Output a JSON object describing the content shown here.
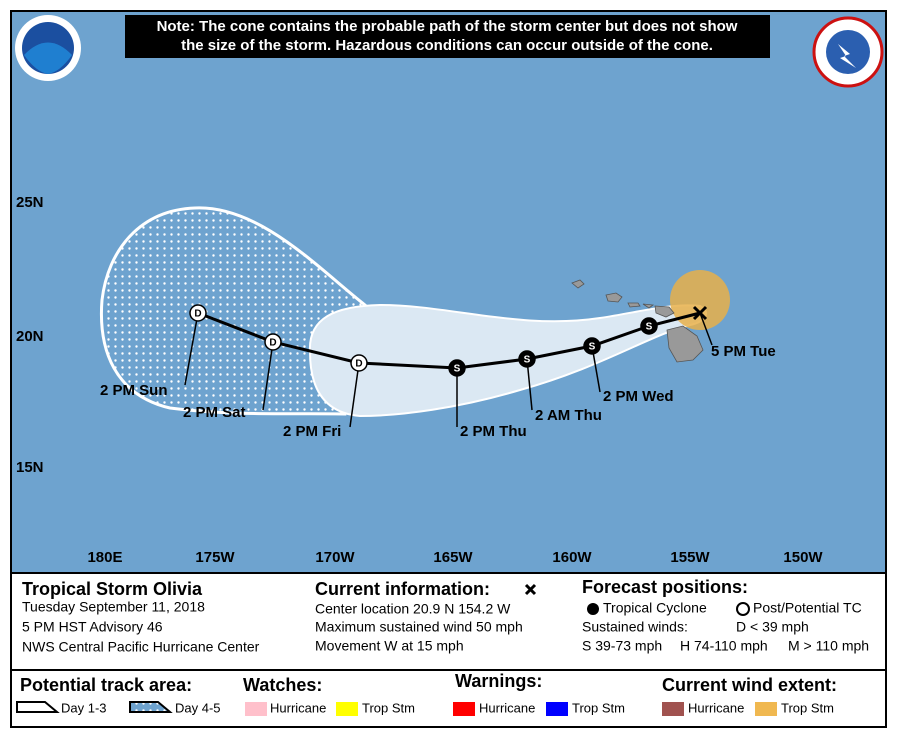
{
  "note": "Note: The cone contains the probable path of the storm center but does not show|the size of the storm. Hazardous conditions can occur outside of the cone.",
  "map": {
    "lat_labels": [
      "25N",
      "20N",
      "15N"
    ],
    "lon_labels": [
      "180E",
      "175W",
      "170W",
      "165W",
      "160W",
      "155W",
      "150W"
    ]
  },
  "track": {
    "points": [
      {
        "symbol": "D",
        "time": "2 PM Sun"
      },
      {
        "symbol": "D",
        "time": "2 PM Sat"
      },
      {
        "symbol": "D",
        "time": "2 PM Fri"
      },
      {
        "symbol": "S",
        "time": "2 PM Thu"
      },
      {
        "symbol": "S",
        "time": "2 AM Thu"
      },
      {
        "symbol": "S",
        "time": "2 PM Wed"
      },
      {
        "symbol": "S",
        "time": null
      }
    ],
    "current": {
      "time": "5 PM Tue"
    }
  },
  "storm": {
    "name": "Tropical Storm Olivia",
    "date": "Tuesday September 11, 2018",
    "advisory": "5 PM HST Advisory 46",
    "center": "NWS Central Pacific Hurricane Center"
  },
  "current_info": {
    "title": "Current information:",
    "lines": [
      "Center location 20.9 N 154.2 W",
      "Maximum sustained wind 50 mph",
      "Movement W at 15 mph"
    ]
  },
  "forecast": {
    "title": "Forecast positions:",
    "tropical": "Tropical Cyclone",
    "post": "Post/Potential TC",
    "winds": "Sustained winds:",
    "d": "D < 39 mph",
    "s": "S 39-73 mph",
    "h": "H 74-110 mph",
    "m": "M > 110 mph"
  },
  "legend": {
    "track_title": "Potential track area:",
    "day13": "Day 1-3",
    "day45": "Day 4-5",
    "watches": {
      "title": "Watches:",
      "hurricane": "Hurricane",
      "trop": "Trop Stm"
    },
    "warnings": {
      "title": "Warnings:",
      "hurricane": "Hurricane",
      "trop": "Trop Stm"
    },
    "wind": {
      "title": "Current wind extent:",
      "hurricane": "Hurricane",
      "trop": "Trop Stm"
    }
  }
}
